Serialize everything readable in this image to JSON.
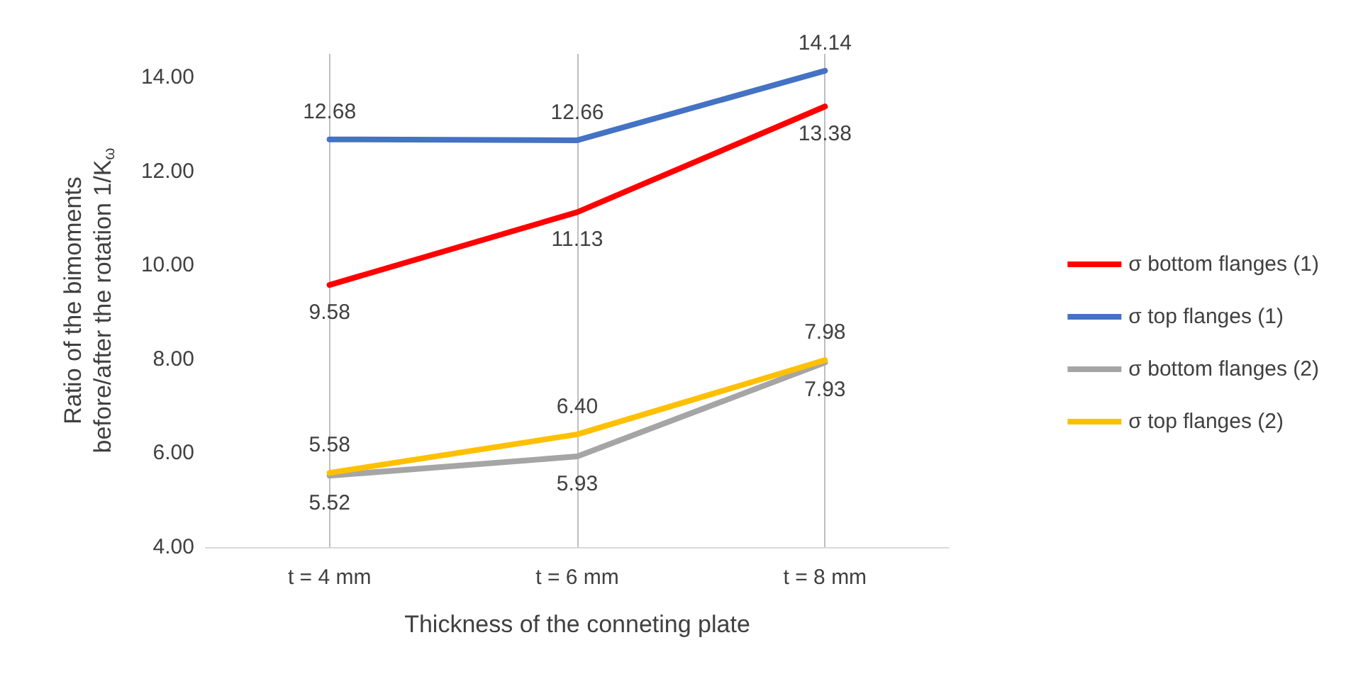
{
  "chart_data": {
    "type": "line",
    "xlabel": "Thickness of the conneting plate",
    "ylabel": "Ratio of the bimoments\nbefore/after the rotation 1/K$_{ω}$",
    "categories": [
      "t = 4 mm",
      "t = 6 mm",
      "t = 8 mm"
    ],
    "series": [
      {
        "name": "σ bottom flanges (1)",
        "color": "#ff0000",
        "values": [
          9.58,
          11.13,
          13.38
        ],
        "value_labels": [
          "9.58",
          "11.13",
          "13.38"
        ]
      },
      {
        "name": "σ top flanges (1)",
        "color": "#4472c4",
        "values": [
          12.68,
          12.66,
          14.14
        ],
        "value_labels": [
          "12.68",
          "12.66",
          "14.14"
        ]
      },
      {
        "name": "σ bottom flanges (2)",
        "color": "#a5a5a5",
        "values": [
          5.52,
          5.93,
          7.93
        ],
        "value_labels": [
          "5.52",
          "5.93",
          "7.93"
        ]
      },
      {
        "name": "σ top flanges (2)",
        "color": "#ffc000",
        "values": [
          5.58,
          6.4,
          7.98
        ],
        "value_labels": [
          "5.58",
          "6.40",
          "7.98"
        ]
      }
    ],
    "ylim": [
      4,
      14.5
    ],
    "yticks": [
      {
        "value": 4,
        "label": "4.00"
      },
      {
        "value": 6,
        "label": "6.00"
      },
      {
        "value": 8,
        "label": "8.00"
      },
      {
        "value": 10,
        "label": "10.00"
      },
      {
        "value": 12,
        "label": "12.00"
      },
      {
        "value": 14,
        "label": "14.00"
      }
    ],
    "grid": "x",
    "legend": "right",
    "line_style": "solid"
  }
}
